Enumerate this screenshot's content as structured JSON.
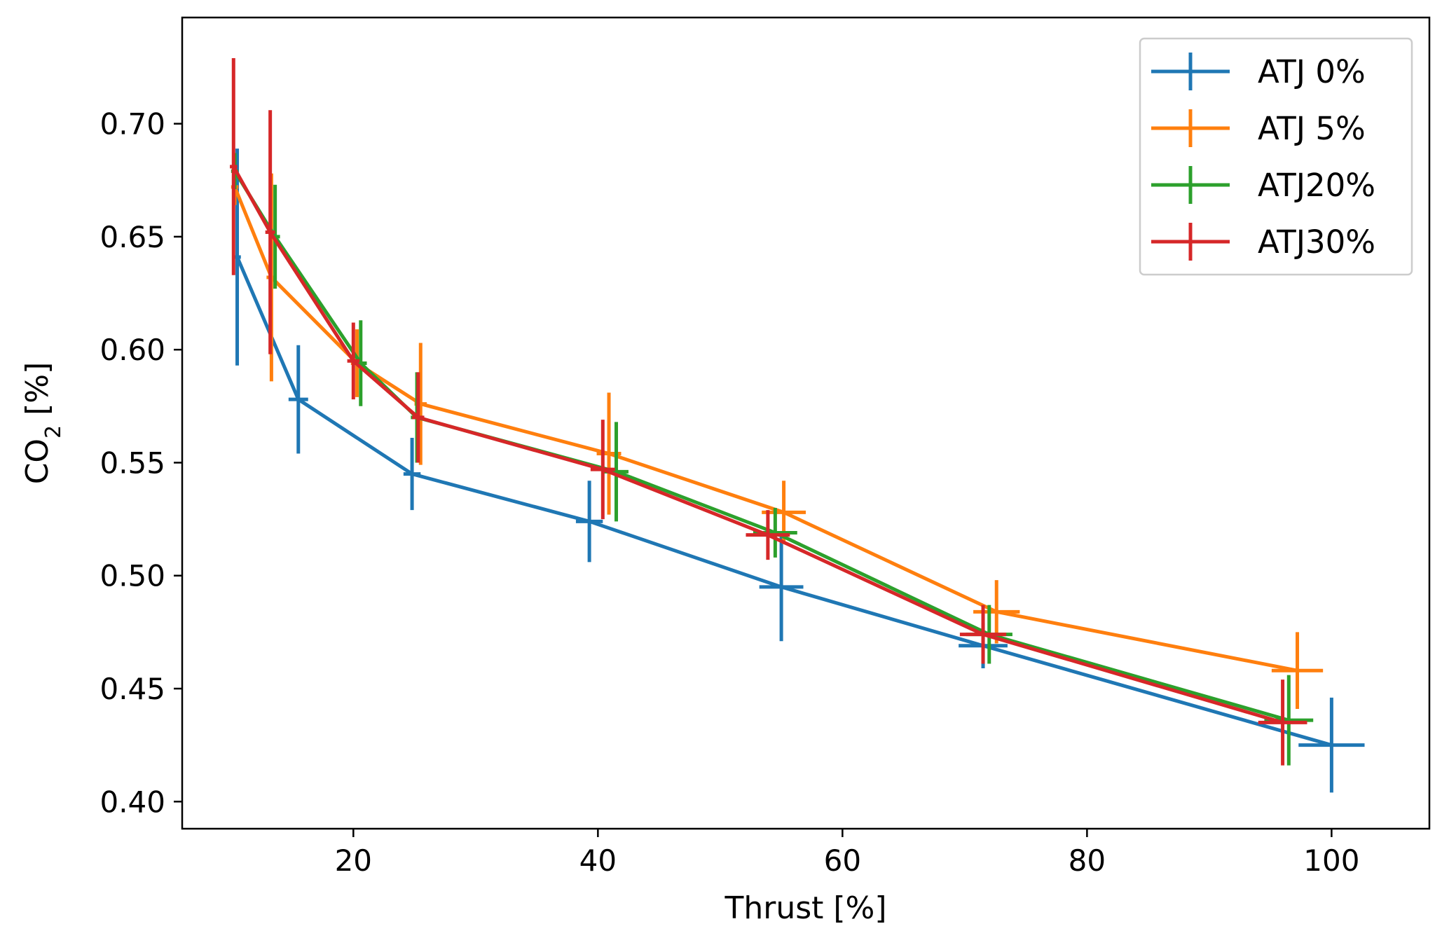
{
  "chart_data": {
    "type": "line",
    "title": "",
    "xlabel": "Thrust [%]",
    "ylabel": {
      "main": "CO",
      "sub": "2",
      "unit": " [%]"
    },
    "xlim": [
      6,
      108
    ],
    "ylim": [
      0.388,
      0.747
    ],
    "xticks": [
      20,
      40,
      60,
      80,
      100
    ],
    "xtick_labels": [
      "20",
      "40",
      "60",
      "80",
      "100"
    ],
    "yticks": [
      0.4,
      0.45,
      0.5,
      0.55,
      0.6,
      0.65,
      0.7
    ],
    "ytick_labels": [
      "0.40",
      "0.45",
      "0.50",
      "0.55",
      "0.60",
      "0.65",
      "0.70"
    ],
    "grid": false,
    "legend_position": "top-right",
    "series": [
      {
        "name": "ATJ 0%",
        "color": "#1f77b4",
        "points": [
          {
            "x": 10.5,
            "y": 0.641,
            "xerr": 0.3,
            "yerr": 0.048
          },
          {
            "x": 15.5,
            "y": 0.578,
            "xerr": 0.8,
            "yerr": 0.024
          },
          {
            "x": 24.8,
            "y": 0.545,
            "xerr": 0.7,
            "yerr": 0.016
          },
          {
            "x": 39.3,
            "y": 0.524,
            "xerr": 1.1,
            "yerr": 0.018
          },
          {
            "x": 55.0,
            "y": 0.495,
            "xerr": 1.8,
            "yerr": 0.024
          },
          {
            "x": 71.5,
            "y": 0.469,
            "xerr": 2.0,
            "yerr": 0.01
          },
          {
            "x": 100.0,
            "y": 0.425,
            "xerr": 2.7,
            "yerr": 0.021
          }
        ]
      },
      {
        "name": "ATJ 5%",
        "color": "#ff7f0e",
        "points": [
          {
            "x": 10.3,
            "y": 0.672,
            "xerr": 0.3,
            "yerr": 0.008
          },
          {
            "x": 13.3,
            "y": 0.632,
            "xerr": 0.4,
            "yerr": 0.046
          },
          {
            "x": 20.3,
            "y": 0.594,
            "xerr": 0.5,
            "yerr": 0.015
          },
          {
            "x": 25.5,
            "y": 0.576,
            "xerr": 0.5,
            "yerr": 0.027
          },
          {
            "x": 40.9,
            "y": 0.554,
            "xerr": 1.0,
            "yerr": 0.027
          },
          {
            "x": 55.2,
            "y": 0.528,
            "xerr": 1.8,
            "yerr": 0.014
          },
          {
            "x": 72.6,
            "y": 0.484,
            "xerr": 1.9,
            "yerr": 0.014
          },
          {
            "x": 97.2,
            "y": 0.458,
            "xerr": 2.1,
            "yerr": 0.017
          }
        ]
      },
      {
        "name": "ATJ20%",
        "color": "#2ca02c",
        "points": [
          {
            "x": 10.3,
            "y": 0.679,
            "xerr": 0.3,
            "yerr": 0.008
          },
          {
            "x": 13.6,
            "y": 0.65,
            "xerr": 0.4,
            "yerr": 0.023
          },
          {
            "x": 20.6,
            "y": 0.594,
            "xerr": 0.5,
            "yerr": 0.019
          },
          {
            "x": 25.2,
            "y": 0.57,
            "xerr": 0.5,
            "yerr": 0.02
          },
          {
            "x": 41.5,
            "y": 0.546,
            "xerr": 1.0,
            "yerr": 0.022
          },
          {
            "x": 54.5,
            "y": 0.519,
            "xerr": 1.8,
            "yerr": 0.011
          },
          {
            "x": 72.0,
            "y": 0.474,
            "xerr": 1.9,
            "yerr": 0.013
          },
          {
            "x": 96.5,
            "y": 0.436,
            "xerr": 2.0,
            "yerr": 0.02
          }
        ]
      },
      {
        "name": "ATJ30%",
        "color": "#d62728",
        "points": [
          {
            "x": 10.2,
            "y": 0.681,
            "xerr": 0.3,
            "yerr": 0.048
          },
          {
            "x": 13.2,
            "y": 0.652,
            "xerr": 0.4,
            "yerr": 0.054
          },
          {
            "x": 20.0,
            "y": 0.595,
            "xerr": 0.5,
            "yerr": 0.017
          },
          {
            "x": 25.3,
            "y": 0.57,
            "xerr": 0.5,
            "yerr": 0.02
          },
          {
            "x": 40.4,
            "y": 0.547,
            "xerr": 1.0,
            "yerr": 0.022
          },
          {
            "x": 53.9,
            "y": 0.518,
            "xerr": 1.8,
            "yerr": 0.011
          },
          {
            "x": 71.5,
            "y": 0.474,
            "xerr": 1.9,
            "yerr": 0.013
          },
          {
            "x": 96.0,
            "y": 0.435,
            "xerr": 2.0,
            "yerr": 0.019
          }
        ]
      }
    ]
  }
}
